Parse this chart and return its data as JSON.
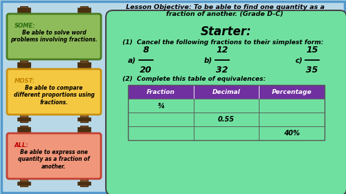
{
  "bg_color": "#b8d8e8",
  "outer_border_color": "#5599cc",
  "title_line1": "Lesson Objective: To be able to find one quantity as a",
  "title_line2": "fraction of another. (Grade D-C)",
  "starter_title": "Starter:",
  "q1_text": "(1)  Cancel the following fractions to their simplest form:",
  "fractions": [
    {
      "label": "a)",
      "num": "8",
      "den": "20"
    },
    {
      "label": "b)",
      "num": "12",
      "den": "32"
    },
    {
      "label": "c)",
      "num": "15",
      "den": "35"
    }
  ],
  "q2_text": "(2)  Complete this table of equivalences:",
  "table_headers": [
    "Fraction",
    "Decimal",
    "Percentage"
  ],
  "table_rows": [
    [
      "¾",
      "",
      ""
    ],
    [
      "",
      "0.55",
      ""
    ],
    [
      "",
      "",
      "40%"
    ]
  ],
  "table_header_bg": "#7030a0",
  "starter_bg": "#70e0a0",
  "starter_border": "#444444",
  "sign_colors": [
    "#8fbc5a",
    "#f5c842",
    "#f0967a"
  ],
  "sign_border_colors": [
    "#4a7a20",
    "#c89010",
    "#c04030"
  ],
  "sign_keyword_colors": [
    "#2a6a10",
    "#c08000",
    "#c00000"
  ],
  "sign_keywords": [
    "SOME:",
    "MOST:",
    "ALL:"
  ],
  "sign_texts": [
    "Be able to solve word\nproblems involving fractions.",
    "Be able to compare\ndifferent proportions using\nfractions.",
    "Be able to express one\nquantity as a fraction of\nanother."
  ],
  "wood_color": "#7b5230",
  "wood_dark": "#4a3010"
}
